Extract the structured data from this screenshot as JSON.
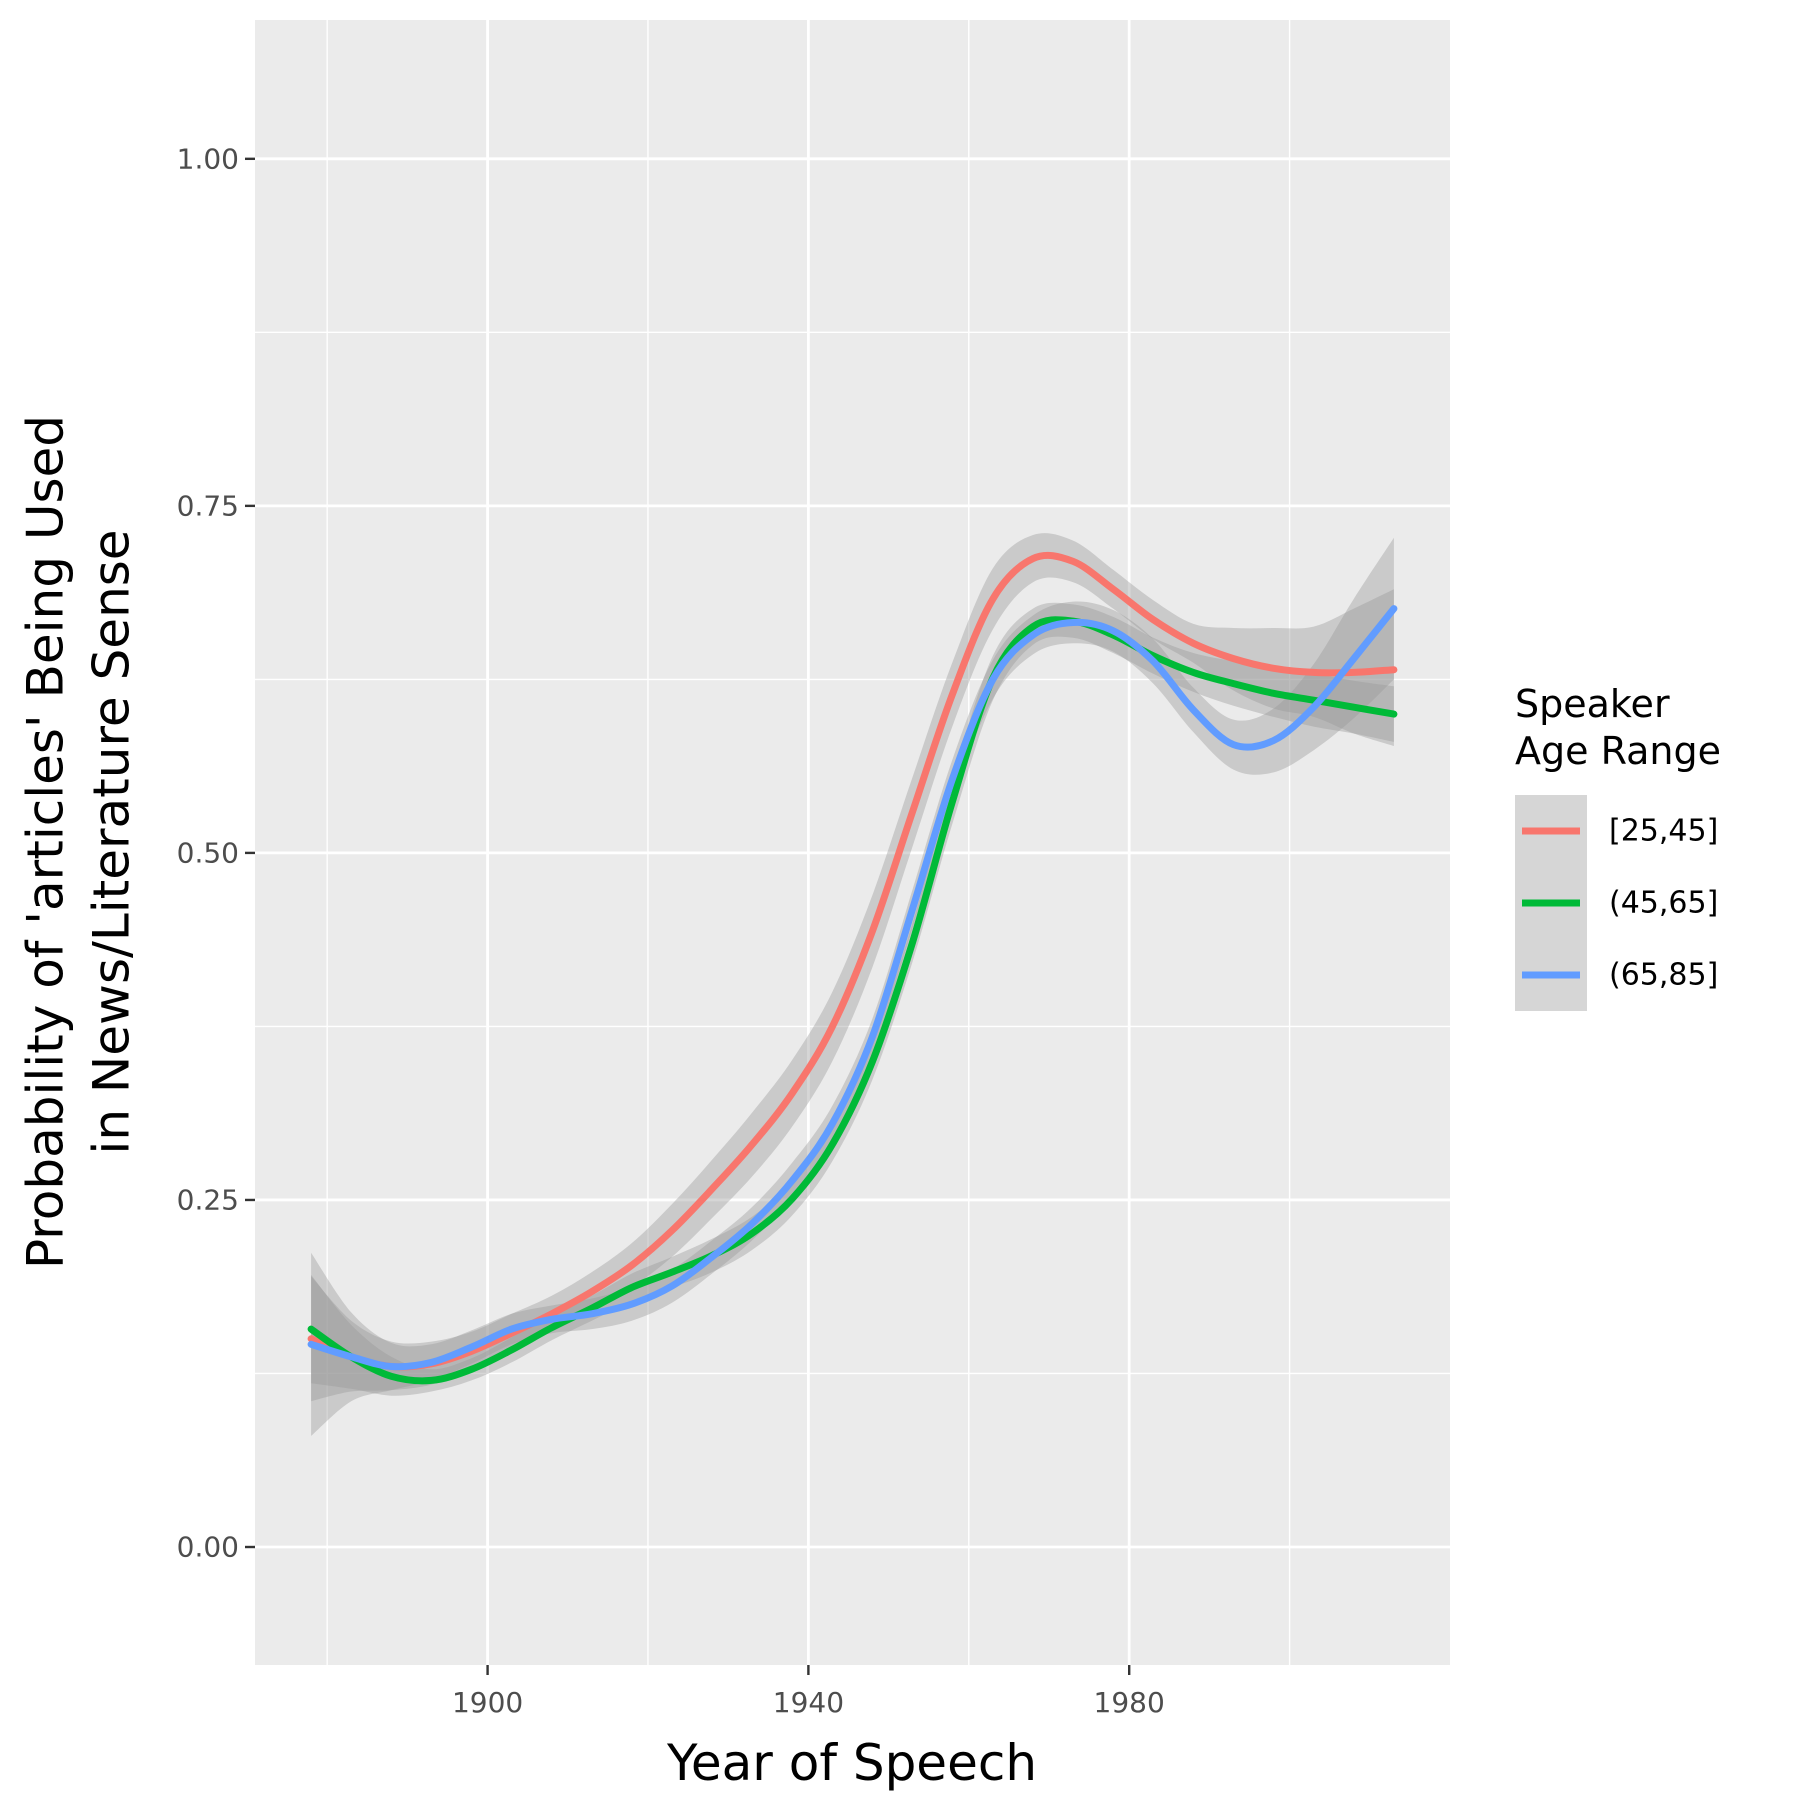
{
  "chart_data": {
    "type": "line",
    "xlabel": "Year of Speech",
    "ylabel_lines": [
      "Probability of 'articles' Being Used",
      "in News/Literature Sense"
    ],
    "xlim": [
      1871,
      2020
    ],
    "ylim": [
      -0.085,
      1.1
    ],
    "x_ticks": [
      1900,
      1940,
      1980
    ],
    "x_tick_labels": [
      "1900",
      "1940",
      "1980"
    ],
    "x_minor_ticks": [
      1880,
      1920,
      1960,
      2000
    ],
    "y_ticks": [
      0.0,
      0.25,
      0.5,
      0.75,
      1.0
    ],
    "y_tick_labels": [
      "0.00",
      "0.25",
      "0.50",
      "0.75",
      "1.00"
    ],
    "y_minor_ticks": [
      0.125,
      0.375,
      0.625,
      0.875
    ],
    "grid": true,
    "panel_background": "#ebebeb",
    "ribbon_color": "#999999",
    "legend": {
      "title_lines": [
        "Speaker",
        "Age Range"
      ],
      "position": "right"
    },
    "x": [
      1878,
      1883,
      1888,
      1893,
      1898,
      1903,
      1908,
      1913,
      1918,
      1923,
      1928,
      1933,
      1938,
      1943,
      1948,
      1953,
      1958,
      1963,
      1968,
      1973,
      1978,
      1983,
      1988,
      1993,
      1998,
      2003,
      2008,
      2013
    ],
    "series": [
      {
        "name": "[25,45]",
        "color": "#F8766D",
        "values": [
          0.15,
          0.137,
          0.13,
          0.132,
          0.141,
          0.154,
          0.168,
          0.184,
          0.203,
          0.228,
          0.258,
          0.29,
          0.327,
          0.375,
          0.444,
          0.53,
          0.615,
          0.683,
          0.712,
          0.71,
          0.69,
          0.668,
          0.651,
          0.64,
          0.633,
          0.63,
          0.63,
          0.632
        ],
        "lower": [
          0.105,
          0.112,
          0.113,
          0.117,
          0.128,
          0.141,
          0.155,
          0.17,
          0.187,
          0.209,
          0.237,
          0.267,
          0.303,
          0.35,
          0.418,
          0.505,
          0.592,
          0.661,
          0.695,
          0.695,
          0.676,
          0.654,
          0.637,
          0.617,
          0.604,
          0.598,
          0.586,
          0.577
        ],
        "upper": [
          0.195,
          0.163,
          0.148,
          0.148,
          0.155,
          0.168,
          0.181,
          0.198,
          0.219,
          0.247,
          0.279,
          0.313,
          0.351,
          0.4,
          0.47,
          0.555,
          0.638,
          0.705,
          0.729,
          0.725,
          0.704,
          0.682,
          0.665,
          0.662,
          0.662,
          0.663,
          0.676,
          0.69
        ]
      },
      {
        "name": "(45,65]",
        "color": "#00BA38",
        "values": [
          0.157,
          0.137,
          0.123,
          0.12,
          0.128,
          0.142,
          0.158,
          0.172,
          0.187,
          0.198,
          0.21,
          0.226,
          0.251,
          0.29,
          0.35,
          0.436,
          0.538,
          0.626,
          0.663,
          0.667,
          0.657,
          0.642,
          0.63,
          0.622,
          0.615,
          0.61,
          0.605,
          0.6
        ],
        "lower": [
          0.118,
          0.114,
          0.109,
          0.112,
          0.12,
          0.133,
          0.149,
          0.163,
          0.177,
          0.187,
          0.198,
          0.214,
          0.239,
          0.278,
          0.337,
          0.422,
          0.522,
          0.61,
          0.65,
          0.655,
          0.644,
          0.629,
          0.616,
          0.606,
          0.598,
          0.591,
          0.586,
          0.58
        ],
        "upper": [
          0.196,
          0.16,
          0.137,
          0.128,
          0.136,
          0.151,
          0.167,
          0.181,
          0.197,
          0.209,
          0.222,
          0.238,
          0.263,
          0.302,
          0.363,
          0.45,
          0.554,
          0.642,
          0.676,
          0.679,
          0.67,
          0.655,
          0.644,
          0.638,
          0.632,
          0.629,
          0.624,
          0.62
        ]
      },
      {
        "name": "(65,85]",
        "color": "#619CFF",
        "values": [
          0.146,
          0.137,
          0.13,
          0.133,
          0.144,
          0.157,
          0.164,
          0.168,
          0.175,
          0.188,
          0.209,
          0.233,
          0.264,
          0.305,
          0.368,
          0.46,
          0.554,
          0.625,
          0.657,
          0.666,
          0.66,
          0.638,
          0.603,
          0.578,
          0.581,
          0.605,
          0.64,
          0.676
        ],
        "lower": [
          0.08,
          0.105,
          0.113,
          0.12,
          0.132,
          0.146,
          0.154,
          0.157,
          0.163,
          0.176,
          0.197,
          0.221,
          0.251,
          0.292,
          0.355,
          0.446,
          0.54,
          0.611,
          0.643,
          0.651,
          0.645,
          0.622,
          0.587,
          0.56,
          0.558,
          0.574,
          0.597,
          0.625
        ],
        "upper": [
          0.212,
          0.169,
          0.147,
          0.146,
          0.156,
          0.168,
          0.174,
          0.179,
          0.187,
          0.2,
          0.221,
          0.245,
          0.277,
          0.318,
          0.381,
          0.474,
          0.568,
          0.639,
          0.671,
          0.681,
          0.675,
          0.654,
          0.619,
          0.596,
          0.604,
          0.636,
          0.683,
          0.727
        ]
      }
    ]
  }
}
